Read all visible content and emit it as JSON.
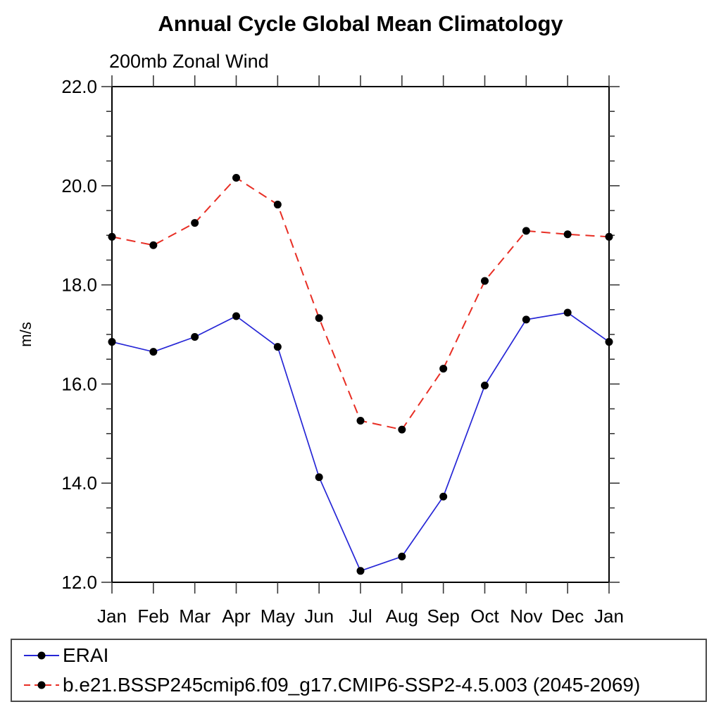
{
  "chart_data": {
    "type": "line",
    "title": "Annual Cycle Global Mean Climatology",
    "subtitle": "200mb Zonal Wind",
    "ylabel": "m/s",
    "categories": [
      "Jan",
      "Feb",
      "Mar",
      "Apr",
      "May",
      "Jun",
      "Jul",
      "Aug",
      "Sep",
      "Oct",
      "Nov",
      "Dec",
      "Jan"
    ],
    "ylim": [
      12.0,
      22.0
    ],
    "yticks_major": [
      12.0,
      14.0,
      16.0,
      18.0,
      20.0,
      22.0
    ],
    "ytick_labels": [
      "12.0",
      "14.0",
      "16.0",
      "18.0",
      "20.0",
      "22.0"
    ],
    "ytick_minor_step": 0.5,
    "grid": false,
    "legend_position": "bottom-box",
    "marker": "filled-circle",
    "marker_color": "#000000",
    "series": [
      {
        "name": "ERAI",
        "color": "#2626d6",
        "line_style": "solid",
        "values": [
          16.85,
          16.65,
          16.95,
          17.37,
          16.75,
          14.12,
          12.23,
          12.52,
          13.73,
          15.97,
          17.3,
          17.44,
          16.85
        ]
      },
      {
        "name": "b.e21.BSSP245cmip6.f09_g17.CMIP6-SSP2-4.5.003 (2045-2069)",
        "color": "#e82e24",
        "line_style": "dashed",
        "values": [
          18.97,
          18.8,
          19.25,
          20.16,
          19.62,
          17.33,
          15.26,
          15.08,
          16.31,
          18.08,
          19.09,
          19.02,
          18.97
        ]
      }
    ]
  }
}
